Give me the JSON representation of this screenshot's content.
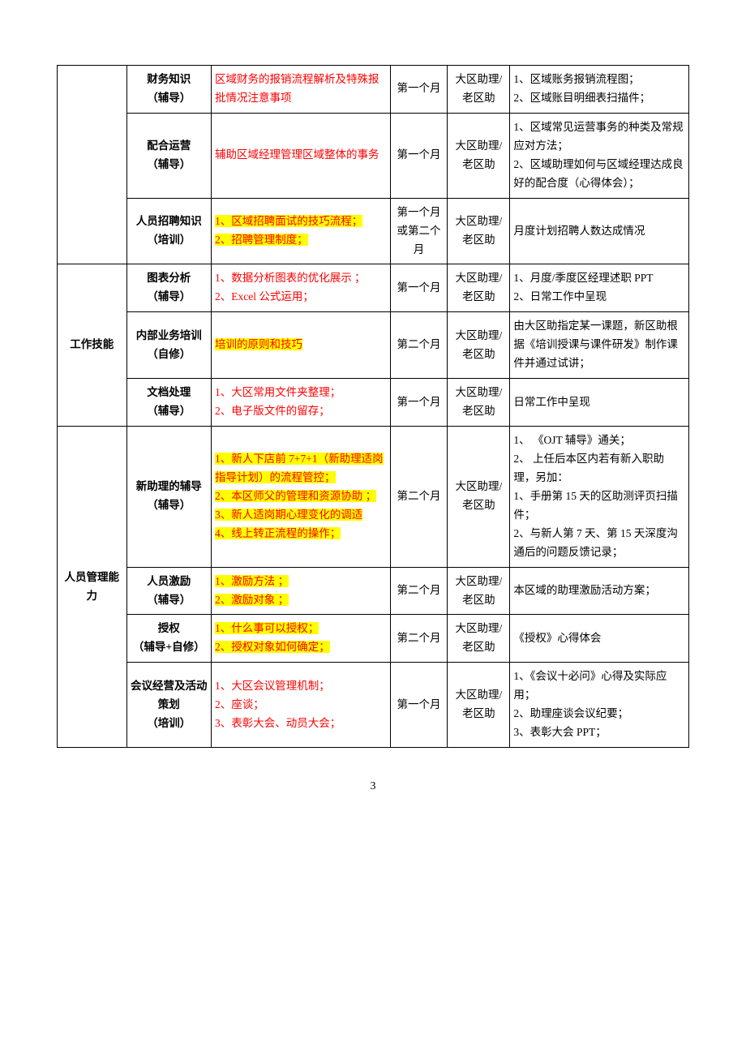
{
  "page_number": "3",
  "colors": {
    "text_red": "#ff0000",
    "highlight_yellow": "#ffff00",
    "border": "#000000",
    "background": "#ffffff"
  },
  "categories": {
    "cat1_blank": "",
    "cat2": "工作技能",
    "cat3": "人员管理能力"
  },
  "rows": [
    {
      "item_l1": "财务知识",
      "item_l2": "（辅导）",
      "content": "区域财务的报销流程解析及特殊报批情况注意事项",
      "time": "第一个月",
      "person": "大区助理/老区助",
      "output": "1、区域账务报销流程图；\n2、区域账目明细表扫描件；"
    },
    {
      "item_l1": "配合运营",
      "item_l2": "（辅导）",
      "content": "辅助区域经理管理区域整体的事务",
      "time": "第一个月",
      "person": "大区助理/老区助",
      "output": "1、区域常见运营事务的种类及常规应对方法；\n2、区域助理如何与区域经理达成良好的配合度（心得体会）；"
    },
    {
      "item_l1": "人员招聘知识",
      "item_l2": "（培训）",
      "content_l1": "1、区域招聘面试的技巧流程；",
      "content_l2": "2、招聘管理制度；",
      "time": "第一个月或第二个月",
      "person": "大区助理/老区助",
      "output": "月度计划招聘人数达成情况"
    },
    {
      "item_l1": "图表分析",
      "item_l2": "（辅导）",
      "content_l1": "1、数据分析图表的优化展示 ；",
      "content_l2": "2、Excel 公式运用；",
      "time": "第一个月",
      "person": "大区助理/老区助",
      "output": "1、月度/季度区经理述职 PPT\n2、日常工作中呈现"
    },
    {
      "item_l1": "内部业务培训",
      "item_l2": "（自修）",
      "content": "培训的原则和技巧",
      "time": "第二个月",
      "person": "大区助理/老区助",
      "output": "由大区助指定某一课题，新区助根据《培训授课与课件研发》制作课件并通过试讲；"
    },
    {
      "item_l1": "文档处理",
      "item_l2": "（辅导）",
      "content_l1": "1、大区常用文件夹整理；",
      "content_l2": "2、电子版文件的留存；",
      "time": "第一个月",
      "person": "大区助理/老区助",
      "output": "日常工作中呈现"
    },
    {
      "item_l1": "新助理的辅导",
      "item_l2": "（辅导）",
      "content_l1": "1、新人下店前 7+7+1（新助理适岗指导计划）的流程管控；",
      "content_l2": "2、本区师父的管理和资源协助 ；",
      "content_l3": "3、新人适岗期心理变化的调适",
      "content_l4": "4、线上转正流程的操作；",
      "time": "第二个月",
      "person": "大区助理/老区助",
      "output": "1、 《OJT 辅导》通关；\n2、 上任后本区内若有新入职助理，另加：\n1、手册第 15 天的区助测评页扫描件；\n2、与新人第 7 天、第 15 天深度沟通后的问题反馈记录；"
    },
    {
      "item_l1": "人员激励",
      "item_l2": "（辅导）",
      "content_l1": "1、激励方法 ；",
      "content_l2": "2、激励对象 ；",
      "time": "第二个月",
      "person": "大区助理/老区助",
      "output": "本区域的助理激励活动方案；"
    },
    {
      "item_l1": "授权",
      "item_l2": "（辅导+自修）",
      "content_l1": "1、什么事可以授权；",
      "content_l2": "2、授权对象如何确定；",
      "time": "第二个月",
      "person": "大区助理/老区助",
      "output": "《授权》心得体会"
    },
    {
      "item_l1": "会议经营及活动策划",
      "item_l2": "（培训）",
      "content_l1": "1、大区会议管理机制；",
      "content_l2": "2、座谈；",
      "content_l3": "3、表彰大会、动员大会；",
      "time": "第一个月",
      "person": "大区助理/老区助",
      "output": "1、《会议十必问》心得及实际应用；\n2、助理座谈会议纪要；\n3、表彰大会 PPT；"
    }
  ]
}
